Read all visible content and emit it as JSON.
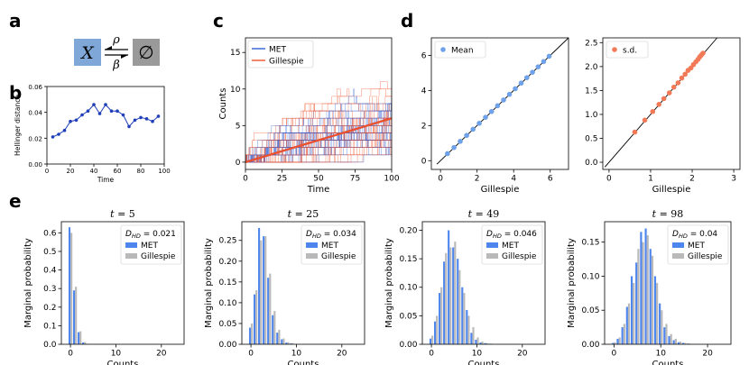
{
  "panel_labels": {
    "a": "a",
    "b": "b",
    "c": "c",
    "d": "d",
    "e": "e"
  },
  "scheme": {
    "species": "X",
    "empty": "∅",
    "birth_rate": "ρ",
    "death_rate": "β",
    "species_color": "#7fa8d9",
    "empty_color": "#9a9a9a"
  },
  "colors": {
    "met": "#2e5fd6",
    "gillespie": "#f0512a",
    "met_bar": "#4f86ee",
    "gil_bar": "#b9b9b9",
    "hd_line": "#1f3fb8",
    "mean_dot": "#6fa2e8",
    "sd_dot": "#f27a58"
  },
  "chart_data": [
    {
      "id": "b",
      "type": "line",
      "xlabel": "Time",
      "ylabel": "Hellinger distance",
      "x": [
        5,
        10,
        15,
        20,
        25,
        30,
        35,
        40,
        45,
        50,
        55,
        60,
        65,
        70,
        75,
        80,
        85,
        90,
        95
      ],
      "y": [
        0.021,
        0.023,
        0.026,
        0.033,
        0.034,
        0.038,
        0.041,
        0.046,
        0.039,
        0.046,
        0.041,
        0.041,
        0.038,
        0.029,
        0.034,
        0.036,
        0.035,
        0.033,
        0.037
      ],
      "xlim": [
        0,
        100
      ],
      "ylim": [
        0,
        0.06
      ],
      "xticks": [
        0,
        20,
        40,
        60,
        80,
        100
      ],
      "xtick_labels": [
        "0",
        "20",
        "40",
        "60",
        "80",
        "100"
      ],
      "yticks": [
        0,
        0.02,
        0.04,
        0.06
      ],
      "ytick_labels": [
        "0.00",
        "0.02",
        "0.04",
        "0.06"
      ]
    },
    {
      "id": "c",
      "type": "line",
      "xlabel": "Time",
      "ylabel": "Counts",
      "xlim": [
        0,
        100
      ],
      "ylim": [
        -1,
        17
      ],
      "xticks": [
        0,
        25,
        50,
        75,
        100
      ],
      "xtick_labels": [
        "0",
        "25",
        "50",
        "75",
        "100"
      ],
      "yticks": [
        0,
        5,
        10,
        15
      ],
      "ytick_labels": [
        "0",
        "5",
        "10",
        "15"
      ],
      "series": [
        {
          "name": "MET",
          "mean": [
            [
              0,
              0
            ],
            [
              25,
              1.5
            ],
            [
              50,
              3
            ],
            [
              75,
              4.5
            ],
            [
              100,
              6
            ]
          ]
        },
        {
          "name": "Gillespie",
          "mean": [
            [
              0,
              0
            ],
            [
              25,
              1.5
            ],
            [
              50,
              3
            ],
            [
              75,
              4.5
            ],
            [
              100,
              6
            ]
          ]
        }
      ],
      "legend": [
        "MET",
        "Gillespie"
      ]
    },
    {
      "id": "d1",
      "type": "scatter",
      "xlabel": "Gillespie",
      "ylabel": "",
      "legend": [
        "Mean"
      ],
      "xlim": [
        -0.5,
        7
      ],
      "ylim": [
        -0.5,
        7
      ],
      "xticks": [
        0,
        2,
        4,
        6
      ],
      "xtick_labels": [
        "0",
        "2",
        "4",
        "6"
      ],
      "yticks": [
        0,
        2,
        4,
        6
      ],
      "ytick_labels": [
        "0",
        "2",
        "4",
        "6"
      ],
      "x": [
        0.38,
        0.74,
        1.08,
        1.43,
        1.78,
        2.12,
        2.46,
        2.79,
        3.12,
        3.45,
        3.77,
        4.09,
        4.41,
        4.72,
        5.03,
        5.34,
        5.64,
        5.94
      ],
      "y": [
        0.4,
        0.75,
        1.1,
        1.44,
        1.79,
        2.13,
        2.47,
        2.8,
        3.13,
        3.46,
        3.78,
        4.1,
        4.42,
        4.73,
        5.04,
        5.35,
        5.65,
        5.95
      ],
      "diagonal": [
        [
          -0.2,
          -0.2
        ],
        [
          7,
          7
        ]
      ]
    },
    {
      "id": "d2",
      "type": "scatter",
      "xlabel": "Gillespie",
      "ylabel": "",
      "legend": [
        "s.d."
      ],
      "xlim": [
        -0.15,
        3.15
      ],
      "ylim": [
        -0.15,
        2.6
      ],
      "xticks": [
        0,
        1,
        2,
        3
      ],
      "xtick_labels": [
        "0",
        "1",
        "2",
        "3"
      ],
      "yticks": [
        0,
        0.5,
        1,
        1.5,
        2,
        2.5
      ],
      "ytick_labels": [
        "0.0",
        "0.5",
        "1.0",
        "1.5",
        "2.0",
        "2.5"
      ],
      "x": [
        0.62,
        0.86,
        1.05,
        1.2,
        1.32,
        1.45,
        1.56,
        1.66,
        1.75,
        1.83,
        1.9,
        1.97,
        2.03,
        2.09,
        2.14,
        2.18,
        2.22,
        2.26
      ],
      "y": [
        0.63,
        0.88,
        1.06,
        1.21,
        1.33,
        1.45,
        1.57,
        1.66,
        1.76,
        1.84,
        1.92,
        1.97,
        2.04,
        2.1,
        2.15,
        2.2,
        2.24,
        2.28
      ],
      "diagonal": [
        [
          -0.1,
          -0.1
        ],
        [
          2.6,
          2.6
        ]
      ]
    },
    {
      "id": "e1",
      "type": "bar",
      "title": "t = 5",
      "xlabel": "Counts",
      "ylabel": "Marginal probability",
      "annotation": "D_HD = 0.021",
      "legend": [
        "MET",
        "Gillespie"
      ],
      "categories": [
        0,
        1,
        2,
        3,
        4
      ],
      "series": [
        {
          "name": "MET",
          "values": [
            0.63,
            0.29,
            0.065,
            0.01,
            0.002
          ]
        },
        {
          "name": "Gillespie",
          "values": [
            0.6,
            0.31,
            0.07,
            0.012,
            0.002
          ]
        }
      ],
      "xlim": [
        -2,
        25
      ],
      "ylim": [
        0,
        0.66
      ],
      "xticks": [
        0,
        10,
        20
      ],
      "xtick_labels": [
        "0",
        "10",
        "20"
      ],
      "yticks": [
        0,
        0.1,
        0.2,
        0.3,
        0.4,
        0.5,
        0.6
      ],
      "ytick_labels": [
        "0.0",
        "0.1",
        "0.2",
        "0.3",
        "0.4",
        "0.5",
        "0.6"
      ]
    },
    {
      "id": "e2",
      "type": "bar",
      "title": "t = 25",
      "xlabel": "Counts",
      "ylabel": "Marginal probability",
      "annotation": "D_HD = 0.034",
      "legend": [
        "MET",
        "Gillespie"
      ],
      "categories": [
        0,
        1,
        2,
        3,
        4,
        5,
        6,
        7,
        8,
        9
      ],
      "series": [
        {
          "name": "MET",
          "values": [
            0.04,
            0.12,
            0.28,
            0.26,
            0.16,
            0.07,
            0.028,
            0.012,
            0.004,
            0.002
          ]
        },
        {
          "name": "Gillespie",
          "values": [
            0.05,
            0.13,
            0.25,
            0.26,
            0.17,
            0.08,
            0.035,
            0.014,
            0.005,
            0.002
          ]
        }
      ],
      "xlim": [
        -2,
        25
      ],
      "ylim": [
        0,
        0.295
      ],
      "xticks": [
        0,
        10,
        20
      ],
      "xtick_labels": [
        "0",
        "10",
        "20"
      ],
      "yticks": [
        0,
        0.05,
        0.1,
        0.15,
        0.2,
        0.25
      ],
      "ytick_labels": [
        "0.00",
        "0.05",
        "0.10",
        "0.15",
        "0.20",
        "0.25"
      ]
    },
    {
      "id": "e3",
      "type": "bar",
      "title": "t = 49",
      "xlabel": "Counts",
      "ylabel": "Marginal probability",
      "annotation": "D_HD = 0.046",
      "legend": [
        "MET",
        "Gillespie"
      ],
      "categories": [
        0,
        1,
        2,
        3,
        4,
        5,
        6,
        7,
        8,
        9,
        10,
        11,
        12,
        13
      ],
      "series": [
        {
          "name": "MET",
          "values": [
            0.01,
            0.04,
            0.09,
            0.145,
            0.2,
            0.17,
            0.15,
            0.1,
            0.06,
            0.02,
            0.008,
            0.003,
            0.002,
            0.001
          ]
        },
        {
          "name": "Gillespie",
          "values": [
            0.015,
            0.05,
            0.1,
            0.16,
            0.17,
            0.18,
            0.13,
            0.09,
            0.05,
            0.03,
            0.012,
            0.005,
            0.002,
            0.001
          ]
        }
      ],
      "xlim": [
        -2,
        25
      ],
      "ylim": [
        0,
        0.215
      ],
      "xticks": [
        0,
        10,
        20
      ],
      "xtick_labels": [
        "0",
        "10",
        "20"
      ],
      "yticks": [
        0,
        0.05,
        0.1,
        0.15,
        0.2
      ],
      "ytick_labels": [
        "0.00",
        "0.05",
        "0.10",
        "0.15",
        "0.20"
      ]
    },
    {
      "id": "e4",
      "type": "bar",
      "title": "t = 98",
      "xlabel": "Counts",
      "ylabel": "Marginal probability",
      "annotation": "D_HD = 0.04",
      "legend": [
        "MET",
        "Gillespie"
      ],
      "categories": [
        0,
        1,
        2,
        3,
        4,
        5,
        6,
        7,
        8,
        9,
        10,
        11,
        12,
        13,
        14,
        15,
        16
      ],
      "series": [
        {
          "name": "MET",
          "values": [
            0.002,
            0.008,
            0.025,
            0.055,
            0.1,
            0.12,
            0.165,
            0.17,
            0.14,
            0.1,
            0.06,
            0.025,
            0.012,
            0.006,
            0.003,
            0.002,
            0.001
          ]
        },
        {
          "name": "Gillespie",
          "values": [
            0.003,
            0.01,
            0.03,
            0.06,
            0.09,
            0.14,
            0.15,
            0.16,
            0.13,
            0.09,
            0.05,
            0.03,
            0.015,
            0.008,
            0.004,
            0.002,
            0.001
          ]
        }
      ],
      "xlim": [
        -2,
        25
      ],
      "ylim": [
        0,
        0.18
      ],
      "xticks": [
        0,
        10,
        20
      ],
      "xtick_labels": [
        "0",
        "10",
        "20"
      ],
      "yticks": [
        0,
        0.05,
        0.1,
        0.15
      ],
      "ytick_labels": [
        "0.00",
        "0.05",
        "0.10",
        "0.15"
      ]
    }
  ]
}
